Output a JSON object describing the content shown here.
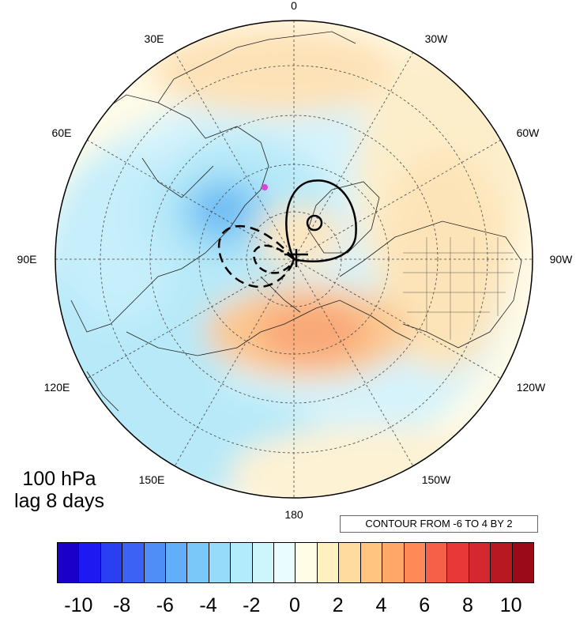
{
  "map": {
    "projection": "north-polar-stereographic",
    "longitude_labels": {
      "top": "0",
      "upper_left_1": "30E",
      "upper_right_1": "30W",
      "upper_left_2": "60E",
      "upper_right_2": "60W",
      "left": "90E",
      "right": "90W",
      "lower_left_2": "120E",
      "lower_right_2": "120W",
      "lower_left_1": "150E",
      "lower_right_1": "150W",
      "bottom": "180"
    },
    "marker_color": "#e040e0"
  },
  "caption": {
    "level": "100 hPa",
    "lag": "lag 8 days"
  },
  "contour_note": "CONTOUR FROM -6 TO 4 BY 2",
  "colorbar": {
    "colors": [
      "#1a00c8",
      "#1e19f0",
      "#2a3ef2",
      "#3a62f5",
      "#4f8ef7",
      "#62aef8",
      "#7ac8f9",
      "#96dcfa",
      "#b2ebfb",
      "#cdf5fc",
      "#eafdfe",
      "#fffde6",
      "#fff0c0",
      "#ffdba0",
      "#ffc580",
      "#ffa868",
      "#ff8a58",
      "#f46048",
      "#e83838",
      "#d42830",
      "#b81820",
      "#9a0a18"
    ],
    "tick_labels": [
      "-10",
      "-8",
      "-6",
      "-4",
      "-2",
      "0",
      "2",
      "4",
      "6",
      "8",
      "10"
    ]
  }
}
